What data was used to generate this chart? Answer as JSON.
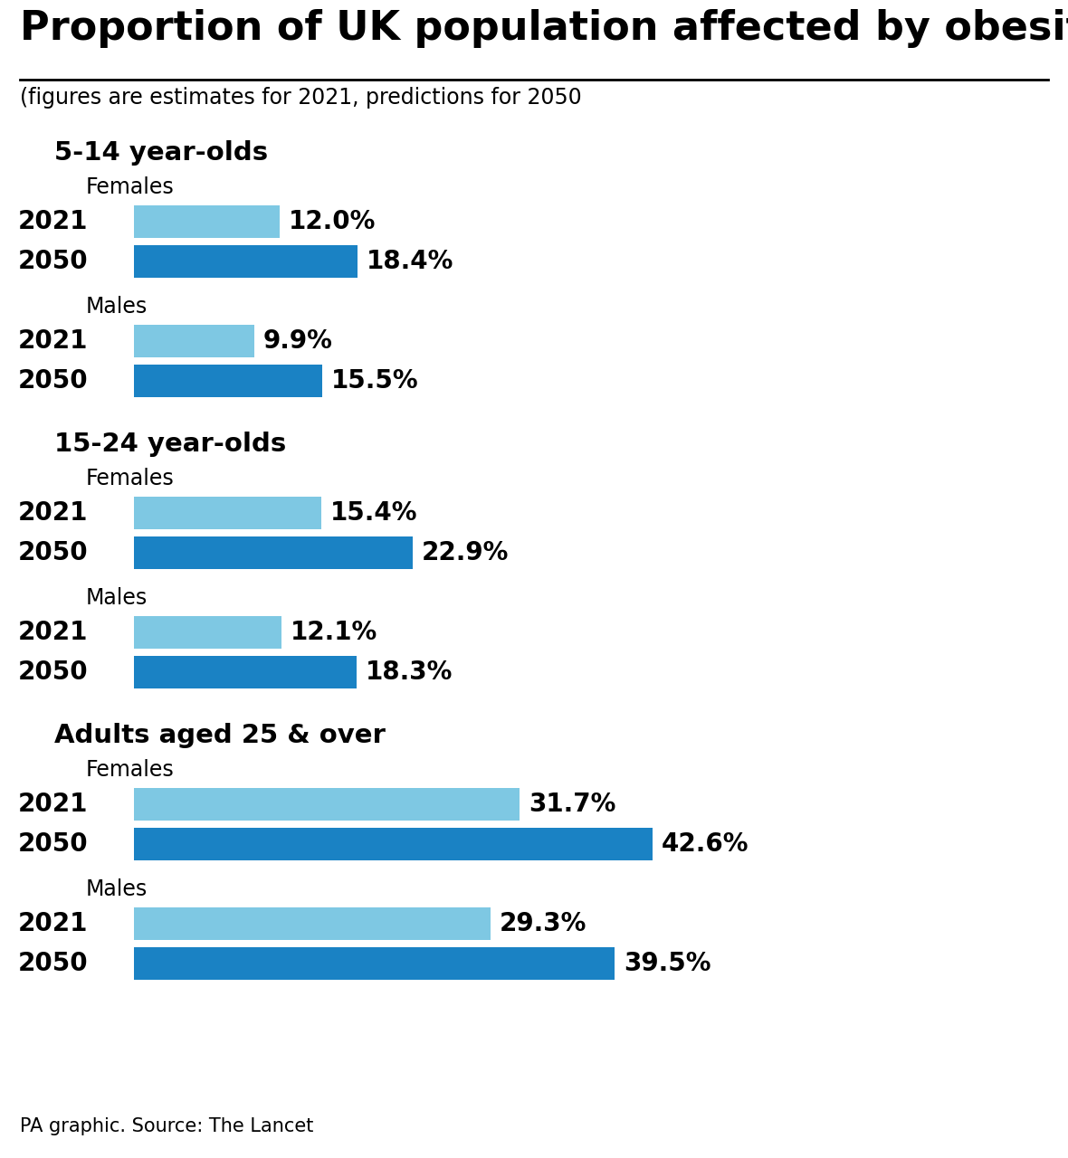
{
  "title": "Proportion of UK population affected by obesity",
  "subtitle": "(figures are estimates for 2021, predictions for 2050",
  "footer": "PA graphic. Source: The Lancet",
  "color_2021": "#7EC8E3",
  "color_2050": "#1A82C4",
  "background_color": "#FFFFFF",
  "groups": [
    {
      "group_label": "5-14 year-olds",
      "subgroups": [
        {
          "label": "Females",
          "bars": [
            {
              "year": "2021",
              "value": 12.0,
              "display": "12.0%"
            },
            {
              "year": "2050",
              "value": 18.4,
              "display": "18.4%"
            }
          ]
        },
        {
          "label": "Males",
          "bars": [
            {
              "year": "2021",
              "value": 9.9,
              "display": "9.9%"
            },
            {
              "year": "2050",
              "value": 15.5,
              "display": "15.5%"
            }
          ]
        }
      ]
    },
    {
      "group_label": "15-24 year-olds",
      "subgroups": [
        {
          "label": "Females",
          "bars": [
            {
              "year": "2021",
              "value": 15.4,
              "display": "15.4%"
            },
            {
              "year": "2050",
              "value": 22.9,
              "display": "22.9%"
            }
          ]
        },
        {
          "label": "Males",
          "bars": [
            {
              "year": "2021",
              "value": 12.1,
              "display": "12.1%"
            },
            {
              "year": "2050",
              "value": 18.3,
              "display": "18.3%"
            }
          ]
        }
      ]
    },
    {
      "group_label": "Adults aged 25 & over",
      "subgroups": [
        {
          "label": "Females",
          "bars": [
            {
              "year": "2021",
              "value": 31.7,
              "display": "31.7%"
            },
            {
              "year": "2050",
              "value": 42.6,
              "display": "42.6%"
            }
          ]
        },
        {
          "label": "Males",
          "bars": [
            {
              "year": "2021",
              "value": 29.3,
              "display": "29.3%"
            },
            {
              "year": "2050",
              "value": 39.5,
              "display": "39.5%"
            }
          ]
        }
      ]
    }
  ],
  "x_max": 50,
  "title_fontsize": 32,
  "subtitle_fontsize": 17,
  "group_label_fontsize": 21,
  "subgroup_label_fontsize": 17,
  "year_label_fontsize": 20,
  "value_label_fontsize": 20,
  "footer_fontsize": 15
}
